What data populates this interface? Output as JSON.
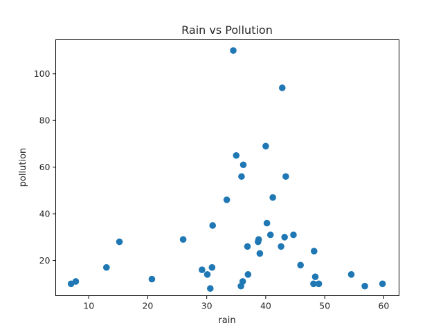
{
  "chart_data": {
    "type": "scatter",
    "title": "Rain vs Pollution",
    "xlabel": "rain",
    "ylabel": "pollution",
    "xlim": [
      4.4,
      62.6
    ],
    "ylim": [
      4.9,
      114.6
    ],
    "xticks": [
      10,
      20,
      30,
      40,
      50,
      60
    ],
    "yticks": [
      20,
      40,
      60,
      80,
      100
    ],
    "grid": false,
    "marker_color": "#1f77b4",
    "points": [
      {
        "x": 7.0,
        "y": 10
      },
      {
        "x": 7.8,
        "y": 11
      },
      {
        "x": 13.0,
        "y": 17
      },
      {
        "x": 15.2,
        "y": 28
      },
      {
        "x": 20.7,
        "y": 12
      },
      {
        "x": 26.0,
        "y": 29
      },
      {
        "x": 29.2,
        "y": 16
      },
      {
        "x": 30.1,
        "y": 14
      },
      {
        "x": 30.6,
        "y": 8
      },
      {
        "x": 30.9,
        "y": 17
      },
      {
        "x": 31.0,
        "y": 35
      },
      {
        "x": 33.4,
        "y": 46
      },
      {
        "x": 34.5,
        "y": 110
      },
      {
        "x": 35.0,
        "y": 65
      },
      {
        "x": 35.8,
        "y": 9
      },
      {
        "x": 35.9,
        "y": 56
      },
      {
        "x": 36.1,
        "y": 11
      },
      {
        "x": 36.2,
        "y": 61
      },
      {
        "x": 36.9,
        "y": 26
      },
      {
        "x": 37.0,
        "y": 14
      },
      {
        "x": 38.7,
        "y": 28
      },
      {
        "x": 38.8,
        "y": 29
      },
      {
        "x": 39.0,
        "y": 23
      },
      {
        "x": 40.0,
        "y": 69
      },
      {
        "x": 40.2,
        "y": 36
      },
      {
        "x": 40.8,
        "y": 31
      },
      {
        "x": 41.2,
        "y": 47
      },
      {
        "x": 42.6,
        "y": 26
      },
      {
        "x": 42.8,
        "y": 94
      },
      {
        "x": 43.2,
        "y": 30
      },
      {
        "x": 43.4,
        "y": 56
      },
      {
        "x": 44.7,
        "y": 31
      },
      {
        "x": 45.9,
        "y": 18
      },
      {
        "x": 48.1,
        "y": 10
      },
      {
        "x": 48.2,
        "y": 24
      },
      {
        "x": 48.4,
        "y": 13
      },
      {
        "x": 49.0,
        "y": 10
      },
      {
        "x": 54.5,
        "y": 14
      },
      {
        "x": 56.8,
        "y": 9
      },
      {
        "x": 59.8,
        "y": 10
      }
    ]
  }
}
